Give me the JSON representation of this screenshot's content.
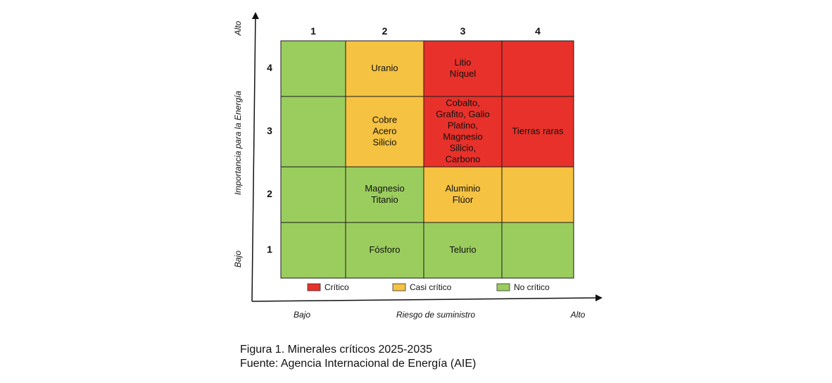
{
  "chart_data": {
    "type": "heatmap",
    "colors": {
      "critico": "#E8312A",
      "casi_critico": "#F5C242",
      "no_critico": "#9BCD5E"
    },
    "columns": [
      "1",
      "2",
      "3",
      "4"
    ],
    "rows": [
      "4",
      "3",
      "2",
      "1"
    ],
    "cells": [
      [
        {
          "status": "no_critico",
          "lines": []
        },
        {
          "status": "casi_critico",
          "lines": [
            "Uranio"
          ]
        },
        {
          "status": "critico",
          "lines": [
            "Litio",
            "Níquel"
          ]
        },
        {
          "status": "critico",
          "lines": []
        }
      ],
      [
        {
          "status": "no_critico",
          "lines": []
        },
        {
          "status": "casi_critico",
          "lines": [
            "Cobre",
            "Acero",
            "Silicio"
          ]
        },
        {
          "status": "critico",
          "lines": [
            "Cobalto,",
            "Grafito, Galio",
            "Platino,",
            "Magnesio",
            "Silicio,",
            "Carbono"
          ]
        },
        {
          "status": "critico",
          "lines": [
            "Tierras raras"
          ]
        }
      ],
      [
        {
          "status": "no_critico",
          "lines": []
        },
        {
          "status": "no_critico",
          "lines": [
            "Magnesio",
            "Titanio"
          ]
        },
        {
          "status": "casi_critico",
          "lines": [
            "Aluminio",
            "Flúor"
          ]
        },
        {
          "status": "casi_critico",
          "lines": []
        }
      ],
      [
        {
          "status": "no_critico",
          "lines": []
        },
        {
          "status": "no_critico",
          "lines": [
            "Fósforo"
          ]
        },
        {
          "status": "no_critico",
          "lines": [
            "Telurio"
          ]
        },
        {
          "status": "no_critico",
          "lines": []
        }
      ]
    ],
    "xlabel": "Riesgo de suministro",
    "x_low": "Bajo",
    "x_high": "Alto",
    "ylabel": "Importancia para la Energía",
    "y_low": "Bajo",
    "y_high": "Alto",
    "legend": [
      {
        "label": "Crítico",
        "status": "critico"
      },
      {
        "label": "Casi crítico",
        "status": "casi_critico"
      },
      {
        "label": "No crítico",
        "status": "no_critico"
      }
    ]
  },
  "caption": {
    "figure": "Figura 1. Minerales críticos 2025-2035",
    "source": "Fuente: Agencia Internacional de Energía (AIE)"
  }
}
